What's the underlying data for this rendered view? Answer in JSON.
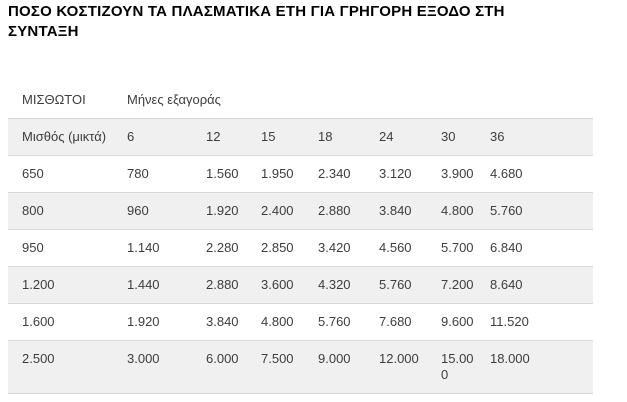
{
  "page": {
    "title": "ΠΟΣΟ ΚΟΣΤΙΖΟΥΝ ΤΑ ΠΛΑΣΜΑΤΙΚΑ ΕΤΗ ΓΙΑ ΓΡΗΓΟΡΗ ΕΞΟΔΟ ΣΤΗ ΣΥΝΤΑΞΗ"
  },
  "table": {
    "group_header": {
      "salaried_label": "ΜΙΣΘΩΤΟΙ",
      "months_label": "Μήνες εξαγοράς"
    },
    "columns": [
      "Μισθός (μικτά)",
      "6",
      "12",
      "15",
      "18",
      "24",
      "30",
      "36"
    ],
    "rows": [
      [
        "650",
        "780",
        "1.560",
        "1.950",
        "2.340",
        "3.120",
        "3.900",
        "4.680"
      ],
      [
        "800",
        "960",
        "1.920",
        "2.400",
        "2.880",
        "3.840",
        "4.800",
        "5.760"
      ],
      [
        "950",
        "1.140",
        "2.280",
        "2.850",
        "3.420",
        "4.560",
        "5.700",
        "6.840"
      ],
      [
        "1.200",
        "1.440",
        "2.880",
        "3.600",
        "4.320",
        "5.760",
        "7.200",
        "8.640"
      ],
      [
        "1.600",
        "1.920",
        "3.840",
        "4.800",
        "5.760",
        "7.680",
        "9.600",
        "11.520"
      ],
      [
        "2.500",
        "3.000",
        "6.000",
        "7.500",
        "9.000",
        "12.000",
        "15.000",
        "18.000"
      ]
    ],
    "colors": {
      "title_text": "#000000",
      "body_text": "#3d3d3d",
      "stripe": "#f0f0f0",
      "border": "#d9d9d9"
    }
  }
}
